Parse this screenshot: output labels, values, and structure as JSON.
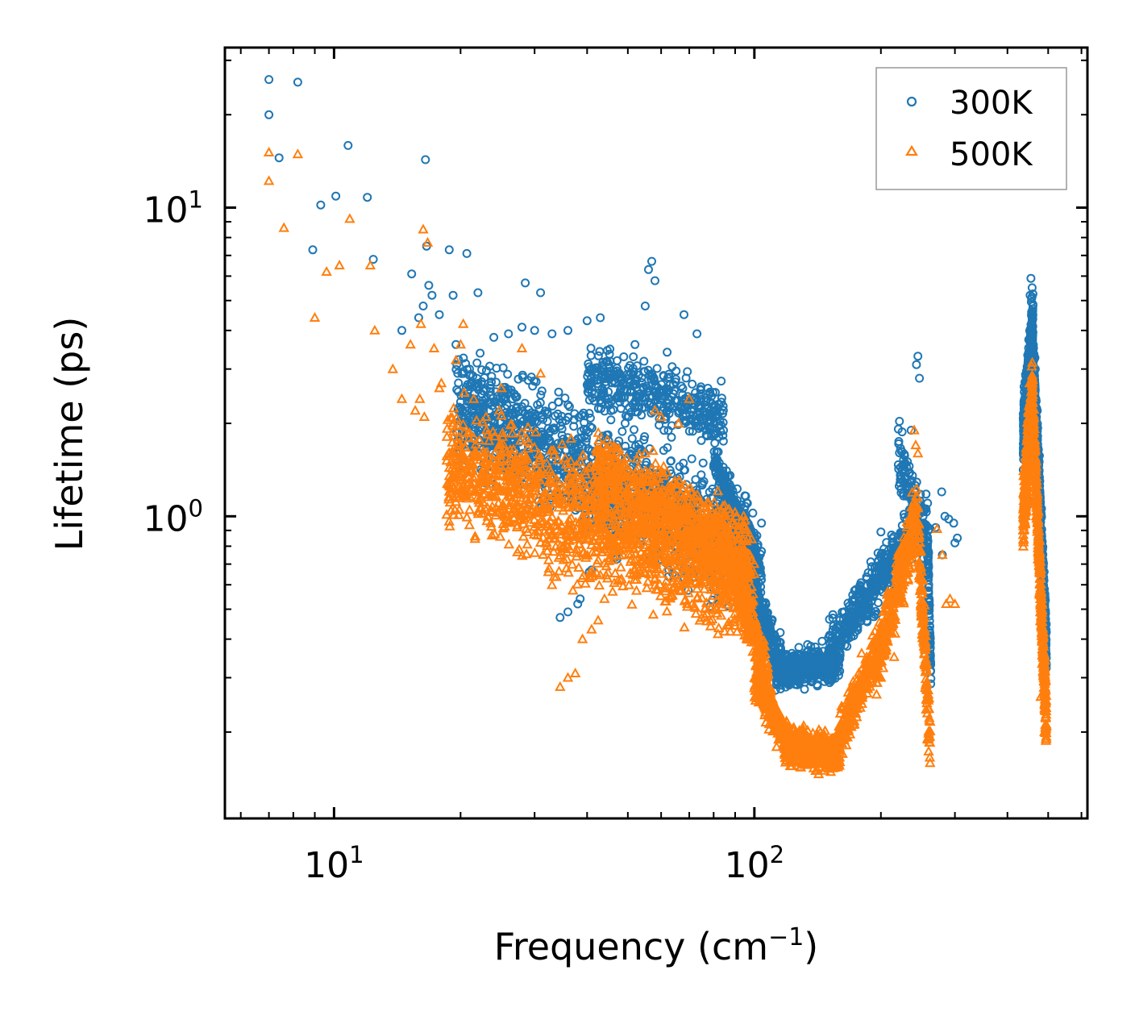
{
  "chart_data": {
    "type": "scatter",
    "title": "",
    "xlabel": "Frequency (cm",
    "xlabel_superscript": "−1",
    "xlabel_suffix": ")",
    "ylabel": "Lifetime (ps)",
    "xscale": "log",
    "yscale": "log",
    "xlim": [
      5.5,
      620
    ],
    "ylim": [
      0.105,
      33
    ],
    "x_ticks": [
      {
        "base": "10",
        "exp": "1",
        "value": 10
      },
      {
        "base": "10",
        "exp": "2",
        "value": 100
      }
    ],
    "y_ticks": [
      {
        "base": "10",
        "exp": "0",
        "value": 1
      },
      {
        "base": "10",
        "exp": "1",
        "value": 10
      }
    ],
    "legend_position": "top-right",
    "series": [
      {
        "name": "300K",
        "color": "#1f77b4",
        "marker": "circle",
        "points": [
          [
            7.0,
            26.0
          ],
          [
            7.0,
            20.0
          ],
          [
            7.4,
            14.5
          ],
          [
            8.2,
            25.5
          ],
          [
            9.3,
            10.2
          ],
          [
            10.1,
            10.9
          ],
          [
            10.8,
            15.9
          ],
          [
            12.0,
            10.8
          ],
          [
            12.4,
            6.8
          ],
          [
            8.9,
            7.3
          ],
          [
            15.3,
            6.1
          ],
          [
            16.5,
            14.3
          ],
          [
            16.6,
            7.5
          ],
          [
            16.8,
            5.6
          ],
          [
            17.1,
            5.2
          ],
          [
            18.8,
            7.3
          ],
          [
            19.2,
            5.2
          ],
          [
            20.7,
            7.1
          ],
          [
            22.0,
            5.3
          ],
          [
            28.5,
            5.7
          ],
          [
            31.0,
            5.3
          ],
          [
            14.5,
            4.0
          ],
          [
            15.9,
            4.4
          ],
          [
            16.3,
            4.8
          ],
          [
            17.8,
            4.5
          ],
          [
            19.5,
            3.6
          ],
          [
            21.0,
            3.0
          ],
          [
            24.0,
            3.8
          ],
          [
            26.0,
            3.9
          ],
          [
            28.0,
            4.1
          ],
          [
            30.0,
            4.0
          ],
          [
            33.0,
            3.9
          ],
          [
            36.0,
            4.0
          ],
          [
            40.0,
            4.3
          ],
          [
            43.0,
            4.4
          ],
          [
            55.0,
            4.8
          ],
          [
            57.0,
            6.7
          ],
          [
            56.0,
            6.3
          ],
          [
            58.0,
            5.8
          ],
          [
            68.0,
            4.5
          ],
          [
            73.0,
            3.9
          ],
          [
            52.0,
            3.6
          ],
          [
            62.0,
            3.4
          ],
          [
            34.5,
            0.47
          ],
          [
            36.0,
            0.49
          ],
          [
            38.0,
            0.52
          ],
          [
            38.5,
            0.54
          ],
          [
            41.0,
            0.67
          ],
          [
            40.5,
            0.66
          ],
          [
            47.0,
            0.74
          ],
          [
            36.5,
            0.9
          ],
          [
            39.0,
            0.84
          ],
          [
            44.5,
            0.88
          ],
          [
            96.0,
            0.82
          ],
          [
            100.0,
            0.78
          ],
          [
            104.0,
            0.95
          ],
          [
            125.0,
            0.31
          ],
          [
            170.0,
            0.45
          ],
          [
            200.0,
            0.89
          ],
          [
            212.0,
            0.87
          ],
          [
            240.0,
            0.85
          ],
          [
            245.0,
            3.3
          ],
          [
            243.0,
            3.1
          ],
          [
            247.0,
            2.8
          ],
          [
            236.0,
            1.9
          ],
          [
            252.0,
            1.0
          ],
          [
            262.0,
            0.91
          ],
          [
            270.0,
            0.92
          ],
          [
            279.0,
            1.2
          ],
          [
            284.0,
            1.0
          ],
          [
            290.0,
            0.98
          ],
          [
            298.0,
            0.95
          ],
          [
            300.0,
            0.82
          ],
          [
            304.0,
            0.85
          ],
          [
            280.0,
            0.75
          ],
          [
            455.0,
            5.9
          ],
          [
            458.0,
            5.5
          ],
          [
            453.0,
            5.2
          ],
          [
            460.0,
            4.8
          ],
          [
            449.0,
            3.3
          ],
          [
            444.0,
            2.5
          ],
          [
            466.0,
            3.0
          ],
          [
            471.0,
            2.2
          ],
          [
            476.0,
            1.5
          ],
          [
            482.0,
            1.0
          ],
          [
            487.0,
            0.7
          ],
          [
            491.0,
            0.56
          ],
          [
            493.0,
            0.45
          ],
          [
            495.0,
            0.33
          ]
        ],
        "bands": [
          {
            "x": [
              19.5,
              100.0
            ],
            "y": [
              2.3,
              0.75
            ],
            "spread": 0.32,
            "count": 1400
          },
          {
            "x": [
              40.0,
              85.0
            ],
            "y": [
              2.9,
              2.1
            ],
            "spread": 0.16,
            "count": 400
          },
          {
            "x": [
              80.0,
              104.0
            ],
            "y": [
              1.5,
              0.68
            ],
            "spread": 0.1,
            "count": 250
          },
          {
            "x": [
              96.0,
              116.0
            ],
            "y": [
              0.62,
              0.33
            ],
            "spread": 0.14,
            "count": 250
          },
          {
            "x": [
              112.0,
              160.0
            ],
            "y": [
              0.31,
              0.34
            ],
            "spread": 0.1,
            "count": 450
          },
          {
            "x": [
              150.0,
              250.0
            ],
            "y": [
              0.36,
              1.0
            ],
            "spread": 0.14,
            "count": 450
          },
          {
            "x": [
              220.0,
              260.0
            ],
            "y": [
              1.6,
              0.78
            ],
            "spread": 0.2,
            "count": 120
          },
          {
            "x": [
              258.0,
              263.0
            ],
            "y": [
              0.85,
              0.3
            ],
            "spread": 0.1,
            "count": 90
          },
          {
            "x": [
              436.0,
              460.0
            ],
            "y": [
              1.8,
              4.3
            ],
            "spread": 0.18,
            "count": 330
          },
          {
            "x": [
              460.0,
              495.0
            ],
            "y": [
              3.4,
              0.38
            ],
            "spread": 0.15,
            "count": 360
          }
        ]
      },
      {
        "name": "500K",
        "color": "#ff7f0e",
        "marker": "triangle",
        "points": [
          [
            7.0,
            15.1
          ],
          [
            7.0,
            12.2
          ],
          [
            7.6,
            8.6
          ],
          [
            8.2,
            14.9
          ],
          [
            9.0,
            4.4
          ],
          [
            9.6,
            6.2
          ],
          [
            10.3,
            6.5
          ],
          [
            10.9,
            9.2
          ],
          [
            12.2,
            6.5
          ],
          [
            12.5,
            4.0
          ],
          [
            13.8,
            3.0
          ],
          [
            15.2,
            3.6
          ],
          [
            16.3,
            8.5
          ],
          [
            16.7,
            7.7
          ],
          [
            16.1,
            4.2
          ],
          [
            17.3,
            3.5
          ],
          [
            17.8,
            2.6
          ],
          [
            18.0,
            2.7
          ],
          [
            19.5,
            3.2
          ],
          [
            20.0,
            3.6
          ],
          [
            20.3,
            4.2
          ],
          [
            21.5,
            2.4
          ],
          [
            23.0,
            2.1
          ],
          [
            25.0,
            2.6
          ],
          [
            28.0,
            3.5
          ],
          [
            31.0,
            2.9
          ],
          [
            14.5,
            2.4
          ],
          [
            15.6,
            2.2
          ],
          [
            16.0,
            2.4
          ],
          [
            16.4,
            2.1
          ],
          [
            34.5,
            0.28
          ],
          [
            36.0,
            0.3
          ],
          [
            37.5,
            0.31
          ],
          [
            39.0,
            0.4
          ],
          [
            41.0,
            0.43
          ],
          [
            42.5,
            0.46
          ],
          [
            44.0,
            0.54
          ],
          [
            46.0,
            0.57
          ],
          [
            48.0,
            0.62
          ],
          [
            55.0,
            1.6
          ],
          [
            60.0,
            2.1
          ],
          [
            58.0,
            2.2
          ],
          [
            70.0,
            2.4
          ],
          [
            66.0,
            2.0
          ],
          [
            180.0,
            0.36
          ],
          [
            200.0,
            0.3
          ],
          [
            215.0,
            0.35
          ],
          [
            232.0,
            0.62
          ],
          [
            240.0,
            1.9
          ],
          [
            242.0,
            1.7
          ],
          [
            245.0,
            1.6
          ],
          [
            228.0,
            0.72
          ],
          [
            272.0,
            0.91
          ],
          [
            280.0,
            0.75
          ],
          [
            286.0,
            0.52
          ],
          [
            292.0,
            0.54
          ],
          [
            300.0,
            0.52
          ],
          [
            258.0,
            0.19
          ],
          [
            480.0,
            0.26
          ],
          [
            490.0,
            0.2
          ],
          [
            495.0,
            0.19
          ]
        ],
        "bands": [
          {
            "x": [
              18.5,
              100.0
            ],
            "y": [
              1.5,
              0.58
            ],
            "spread": 0.32,
            "count": 1400
          },
          {
            "x": [
              42.0,
              95.0
            ],
            "y": [
              1.4,
              0.75
            ],
            "spread": 0.22,
            "count": 700
          },
          {
            "x": [
              88.0,
              108.0
            ],
            "y": [
              0.7,
              0.3
            ],
            "spread": 0.12,
            "count": 250
          },
          {
            "x": [
              100.0,
              120.0
            ],
            "y": [
              0.3,
              0.19
            ],
            "spread": 0.12,
            "count": 250
          },
          {
            "x": [
              118.0,
              160.0
            ],
            "y": [
              0.18,
              0.17
            ],
            "spread": 0.1,
            "count": 450
          },
          {
            "x": [
              158.0,
              195.0
            ],
            "y": [
              0.19,
              0.36
            ],
            "spread": 0.12,
            "count": 250
          },
          {
            "x": [
              195.0,
              245.0
            ],
            "y": [
              0.33,
              1.05
            ],
            "spread": 0.18,
            "count": 350
          },
          {
            "x": [
              246.0,
              262.0
            ],
            "y": [
              0.8,
              0.18
            ],
            "spread": 0.18,
            "count": 150
          },
          {
            "x": [
              436.0,
              458.0
            ],
            "y": [
              0.95,
              2.5
            ],
            "spread": 0.2,
            "count": 300
          },
          {
            "x": [
              458.0,
              495.0
            ],
            "y": [
              2.5,
              0.21
            ],
            "spread": 0.15,
            "count": 380
          }
        ]
      }
    ]
  }
}
